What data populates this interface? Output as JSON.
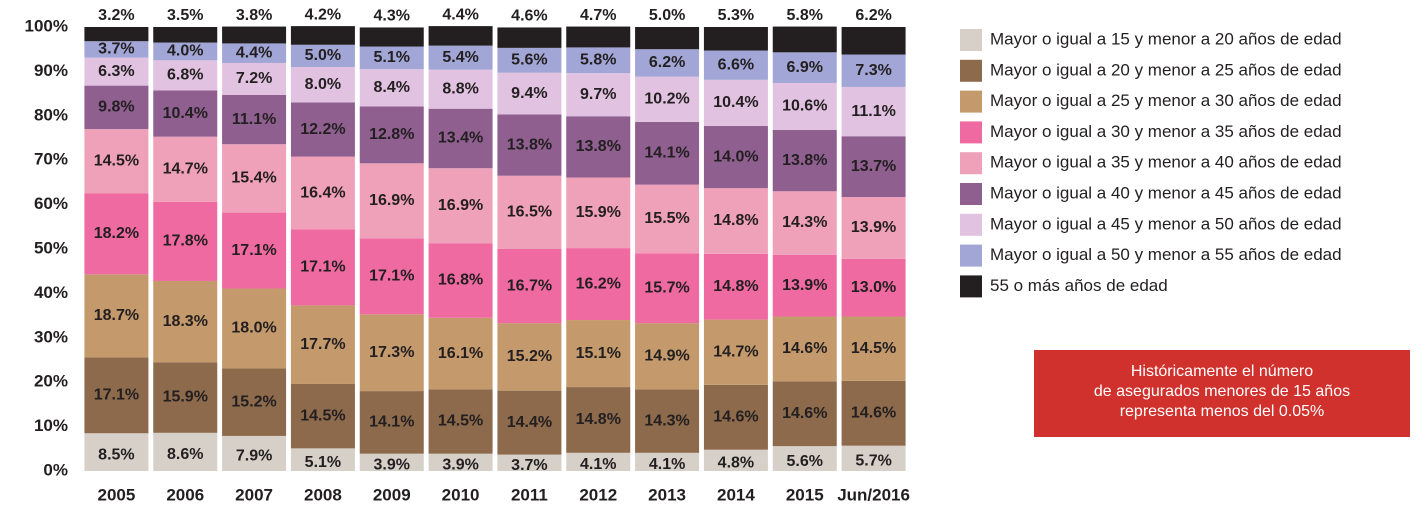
{
  "chart_data": {
    "type": "stacked_bar",
    "categories": [
      "2005",
      "2006",
      "2007",
      "2008",
      "2009",
      "2010",
      "2011",
      "2012",
      "2013",
      "2014",
      "2015",
      "Jun/2016"
    ],
    "ylim": [
      0,
      100
    ],
    "yticks": [
      {
        "value": 0,
        "label": "0%"
      },
      {
        "value": 10,
        "label": "10%"
      },
      {
        "value": 20,
        "label": "20%"
      },
      {
        "value": 30,
        "label": "30%"
      },
      {
        "value": 40,
        "label": "40%"
      },
      {
        "value": 50,
        "label": "50%"
      },
      {
        "value": 60,
        "label": "60%"
      },
      {
        "value": 70,
        "label": "70%"
      },
      {
        "value": 80,
        "label": "80%"
      },
      {
        "value": 90,
        "label": "90%"
      },
      {
        "value": 100,
        "label": "100%"
      }
    ],
    "grid": false,
    "legend": "right",
    "series": [
      {
        "name": "Mayor o igual a 15 y menor a 20 años de edad",
        "color": "#d6d0c9",
        "values": [
          8.5,
          8.6,
          7.9,
          5.1,
          3.9,
          3.9,
          3.7,
          4.1,
          4.1,
          4.8,
          5.6,
          5.7
        ],
        "value_labels": [
          "8.5%",
          "8.6%",
          "7.9%",
          "5.1%",
          "3.9%",
          "3.9%",
          "3.7%",
          "4.1%",
          "4.1%",
          "4.8%",
          "5.6%",
          "5.7%"
        ]
      },
      {
        "name": "Mayor o igual a 20 y menor a 25 años de edad",
        "color": "#8c6a4b",
        "values": [
          17.1,
          15.9,
          15.2,
          14.5,
          14.1,
          14.5,
          14.4,
          14.8,
          14.3,
          14.6,
          14.6,
          14.6
        ],
        "value_labels": [
          "17.1%",
          "15.9%",
          "15.2%",
          "14.5%",
          "14.1%",
          "14.5%",
          "14.4%",
          "14.8%",
          "14.3%",
          "14.6%",
          "14.6%",
          "14.6%"
        ]
      },
      {
        "name": "Mayor o igual a 25 y menor a 30 años de edad",
        "color": "#c49a6c",
        "values": [
          18.7,
          18.3,
          18.0,
          17.7,
          17.3,
          16.1,
          15.2,
          15.1,
          14.9,
          14.7,
          14.6,
          14.5
        ],
        "value_labels": [
          "18.7%",
          "18.3%",
          "18.0%",
          "17.7%",
          "17.3%",
          "16.1%",
          "15.2%",
          "15.1%",
          "14.9%",
          "14.7%",
          "14.6%",
          "14.5%"
        ]
      },
      {
        "name": "Mayor o igual a 30 y menor a 35 años de edad",
        "color": "#f06aa2",
        "values": [
          18.2,
          17.8,
          17.1,
          17.1,
          17.1,
          16.8,
          16.7,
          16.2,
          15.7,
          14.8,
          13.9,
          13.0
        ],
        "value_labels": [
          "18.2%",
          "17.8%",
          "17.1%",
          "17.1%",
          "17.1%",
          "16.8%",
          "16.7%",
          "16.2%",
          "15.7%",
          "14.8%",
          "13.9%",
          "13.0%"
        ]
      },
      {
        "name": "Mayor o igual a 35 y menor a 40 años de edad",
        "color": "#f0a1ba",
        "values": [
          14.5,
          14.7,
          15.4,
          16.4,
          16.9,
          16.9,
          16.5,
          15.9,
          15.5,
          14.8,
          14.3,
          13.9
        ],
        "value_labels": [
          "14.5%",
          "14.7%",
          "15.4%",
          "16.4%",
          "16.9%",
          "16.9%",
          "16.5%",
          "15.9%",
          "15.5%",
          "14.8%",
          "14.3%",
          "13.9%"
        ]
      },
      {
        "name": "Mayor o igual a 40 y menor a 45 años de edad",
        "color": "#8f5f90",
        "values": [
          9.8,
          10.4,
          11.1,
          12.2,
          12.8,
          13.4,
          13.8,
          13.8,
          14.1,
          14.0,
          13.8,
          13.7
        ],
        "value_labels": [
          "9.8%",
          "10.4%",
          "11.1%",
          "12.2%",
          "12.8%",
          "13.4%",
          "13.8%",
          "13.8%",
          "14.1%",
          "14.0%",
          "13.8%",
          "13.7%"
        ]
      },
      {
        "name": "Mayor o igual a 45 y menor a 50 años de edad",
        "color": "#e1c2e1",
        "values": [
          6.3,
          6.8,
          7.2,
          8.0,
          8.4,
          8.8,
          9.4,
          9.7,
          10.2,
          10.4,
          10.6,
          11.1
        ],
        "value_labels": [
          "6.3%",
          "6.8%",
          "7.2%",
          "8.0%",
          "8.4%",
          "8.8%",
          "9.4%",
          "9.7%",
          "10.2%",
          "10.4%",
          "10.6%",
          "11.1%"
        ]
      },
      {
        "name": "Mayor o igual a 50 y menor a 55 años de edad",
        "color": "#a1a6d6",
        "values": [
          3.7,
          4.0,
          4.4,
          5.0,
          5.1,
          5.4,
          5.6,
          5.8,
          6.2,
          6.6,
          6.9,
          7.3
        ],
        "value_labels": [
          "3.7%",
          "4.0%",
          "4.4%",
          "5.0%",
          "5.1%",
          "5.4%",
          "5.6%",
          "5.8%",
          "6.2%",
          "6.6%",
          "6.9%",
          "7.3%"
        ]
      },
      {
        "name": "55 o más años de edad",
        "color": "#231f20",
        "values": [
          3.2,
          3.5,
          3.8,
          4.2,
          4.3,
          4.4,
          4.6,
          4.7,
          5.0,
          5.3,
          5.8,
          6.2
        ],
        "value_labels": [
          "3.2%",
          "3.5%",
          "3.8%",
          "4.2%",
          "4.3%",
          "4.4%",
          "4.6%",
          "4.7%",
          "5.0%",
          "5.3%",
          "5.8%",
          "6.2%"
        ]
      }
    ],
    "annotation": [
      "Históricamente el número",
      "de asegurados menores de 15 años",
      "representa menos del 0.05%"
    ],
    "annotation_color": "#d0312d"
  }
}
